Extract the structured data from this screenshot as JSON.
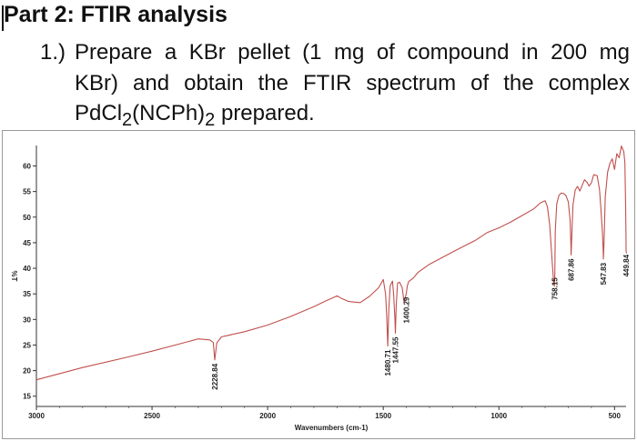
{
  "heading": {
    "part_title": "Part 2: FTIR analysis",
    "step_number": "1.)",
    "line1": "Prepare a KBr pellet (1 mg of compound in 200 mg",
    "line2": "KBr) and obtain the FTIR spectrum of the complex",
    "line3_pre": "PdCl",
    "line3_sub1": "2",
    "line3_mid": "(NCPh)",
    "line3_sub2": "2",
    "line3_post": " prepared."
  },
  "chart_data": {
    "type": "line",
    "title": "",
    "xlabel": "Wavenumbers (cm-1)",
    "ylabel": "%T",
    "xlim": [
      3000,
      450
    ],
    "ylim": [
      13,
      64
    ],
    "x_ticks": [
      3000,
      2500,
      2000,
      1500,
      1000,
      500
    ],
    "y_ticks": [
      15,
      20,
      25,
      30,
      35,
      40,
      45,
      50,
      55,
      60
    ],
    "line_color": "#c0504d",
    "grid": false,
    "series": [
      {
        "x": [
          3000,
          2800,
          2600,
          2500,
          2350,
          2300,
          2250,
          2235,
          2228.84,
          2220,
          2200,
          2100,
          2000,
          1900,
          1800,
          1750,
          1700,
          1680,
          1650,
          1600,
          1560,
          1520,
          1500,
          1490,
          1485,
          1480.71,
          1476,
          1470,
          1460,
          1455,
          1450,
          1447.55,
          1444,
          1438,
          1430,
          1418,
          1410,
          1400.29,
          1396,
          1390,
          1370,
          1350,
          1300,
          1200,
          1100,
          1050,
          1000,
          950,
          900,
          850,
          820,
          800,
          790,
          780,
          770,
          763,
          760,
          758.15,
          756,
          750,
          740,
          730,
          720,
          710,
          700,
          692,
          689,
          687.86,
          686,
          680,
          670,
          660,
          650,
          640,
          630,
          620,
          610,
          600,
          590,
          575,
          565,
          560,
          552,
          549,
          547.83,
          545,
          540,
          530,
          520,
          510,
          500,
          490,
          480,
          470,
          460,
          455,
          452,
          450.5,
          449.84,
          448
        ],
        "y": [
          18.2,
          20.6,
          22.7,
          23.8,
          25.6,
          26.2,
          26.0,
          25.5,
          22.1,
          25.4,
          26.6,
          27.6,
          28.9,
          30.6,
          32.5,
          33.6,
          34.6,
          34.1,
          33.5,
          33.3,
          34.5,
          36.2,
          37.8,
          35.0,
          30.6,
          24.8,
          32.1,
          36.6,
          37.5,
          34.8,
          30.4,
          27.3,
          32.7,
          37.1,
          37.3,
          36.2,
          33.4,
          35.1,
          36.6,
          37.4,
          38.1,
          39.2,
          40.8,
          43.2,
          45.5,
          47.0,
          47.9,
          49.0,
          50.3,
          51.6,
          52.8,
          53.2,
          52.0,
          48.4,
          41.5,
          37.0,
          36.5,
          38.9,
          47.3,
          52.6,
          54.3,
          54.7,
          54.6,
          54.2,
          53.0,
          49.4,
          45.1,
          42.6,
          44.6,
          52.3,
          55.3,
          56.0,
          55.1,
          56.2,
          57.3,
          56.9,
          56.1,
          56.7,
          58.3,
          58.1,
          55.4,
          52.5,
          46.8,
          43.7,
          41.8,
          45.8,
          53.9,
          58.8,
          60.5,
          61.4,
          59.3,
          62.4,
          61.6,
          63.9,
          62.8,
          60.6,
          52.1,
          46.4,
          43.4,
          42.9
        ]
      }
    ],
    "peak_labels": [
      {
        "x": 2228.84,
        "text": "2228.84"
      },
      {
        "x": 1480.71,
        "text": "1480.71"
      },
      {
        "x": 1447.55,
        "text": "1447.55"
      },
      {
        "x": 1400.29,
        "text": "1400.29"
      },
      {
        "x": 758.15,
        "text": "758.15"
      },
      {
        "x": 687.86,
        "text": "687.86"
      },
      {
        "x": 547.83,
        "text": "547.83"
      },
      {
        "x": 449.84,
        "text": "449.84"
      }
    ]
  }
}
